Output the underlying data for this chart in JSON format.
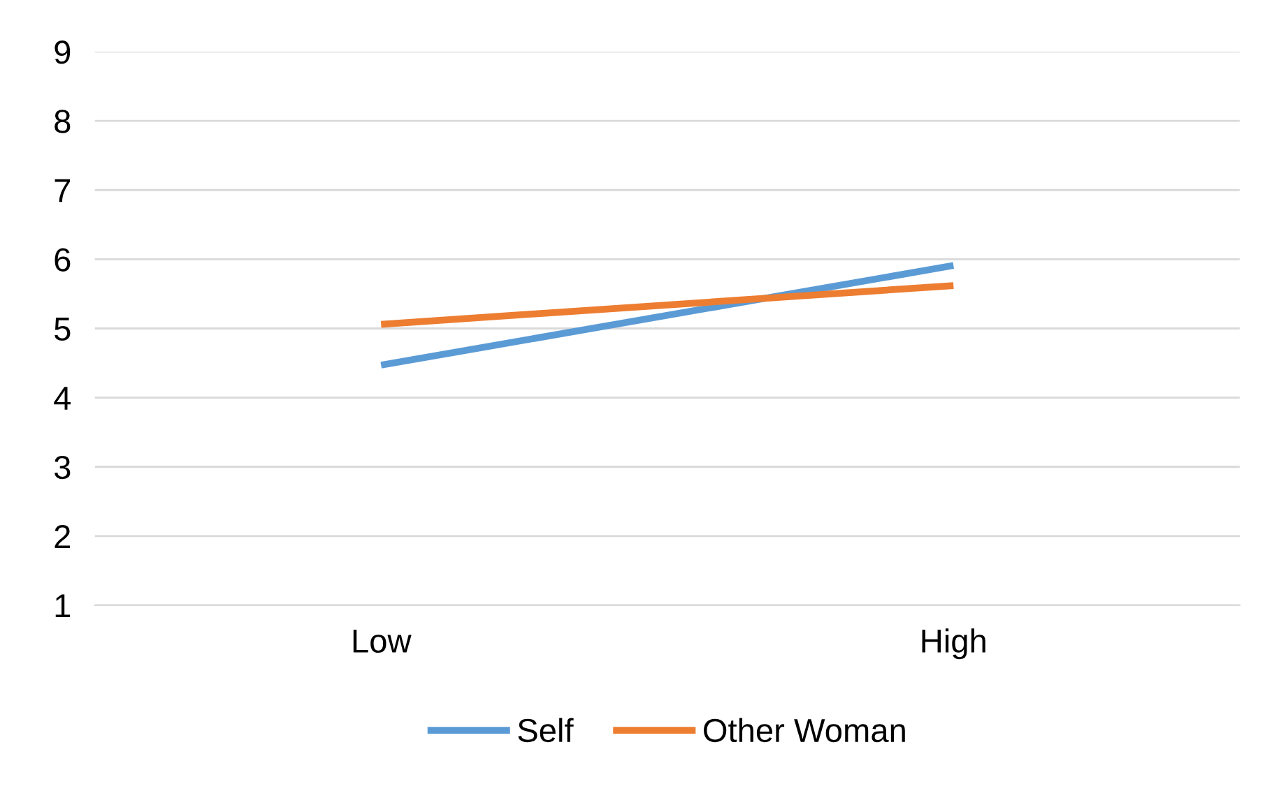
{
  "chart_data": {
    "type": "line",
    "categories": [
      "Low",
      "High"
    ],
    "series": [
      {
        "name": "Self",
        "color": "#5b9bd5",
        "values": [
          4.47,
          5.91
        ]
      },
      {
        "name": "Other Woman",
        "color": "#ed7d31",
        "values": [
          5.06,
          5.62
        ]
      }
    ],
    "ylim": [
      1,
      9
    ],
    "yticks": [
      1,
      2,
      3,
      4,
      5,
      6,
      7,
      8,
      9
    ],
    "grid": "y",
    "legend": "bottom",
    "marker": "none",
    "line_style": "solid"
  }
}
